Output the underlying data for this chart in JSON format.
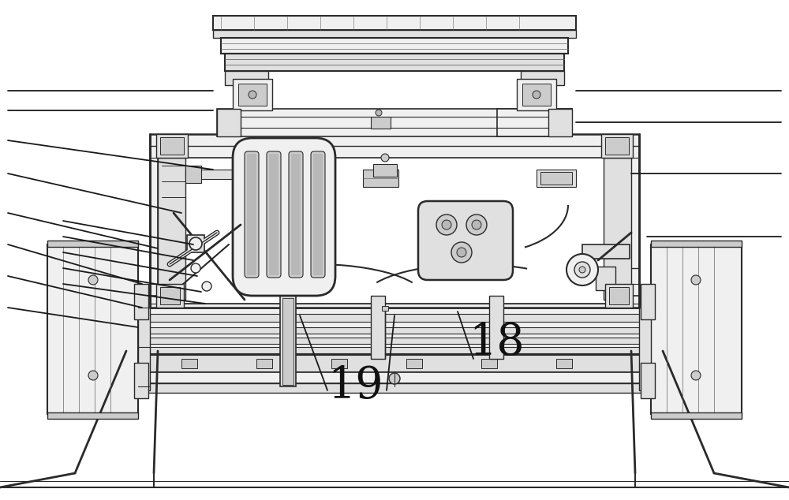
{
  "bg_color": "#ffffff",
  "lc": "#2a2a2a",
  "lc_light": "#666666",
  "lc_med": "#444444",
  "fc_white": "#ffffff",
  "fc_light": "#f0f0f0",
  "fc_mid": "#e0e0e0",
  "fc_dark": "#cccccc",
  "fc_darker": "#b8b8b8",
  "label_18": "18",
  "label_19": "19",
  "figsize": [
    10.0,
    6.34
  ],
  "dpi": 100
}
